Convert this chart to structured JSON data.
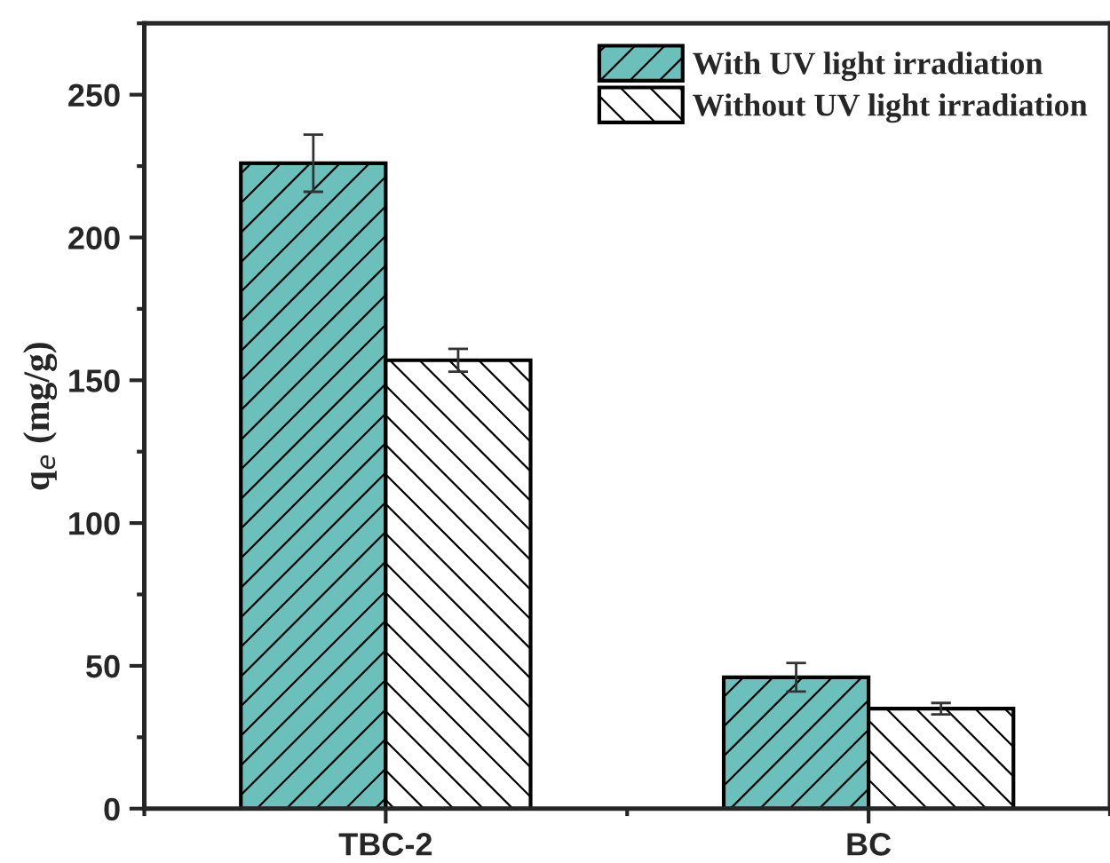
{
  "chart_data": {
    "type": "bar",
    "ylabel": "q$_{e}$ (mg/g)",
    "categories": [
      "TBC-2",
      "BC"
    ],
    "series": [
      {
        "name": "With UV light irradiation",
        "color": "#6cc0bc",
        "values": [
          226,
          46
        ],
        "errors": [
          10,
          5
        ]
      },
      {
        "name": "Without UV light irradiation",
        "color": "#ffffff",
        "values": [
          157,
          35
        ],
        "errors": [
          4,
          2
        ]
      }
    ],
    "ylim": [
      0,
      275
    ],
    "yticks": [
      0,
      50,
      100,
      150,
      200,
      250
    ],
    "grid": false,
    "legend": "top right"
  }
}
